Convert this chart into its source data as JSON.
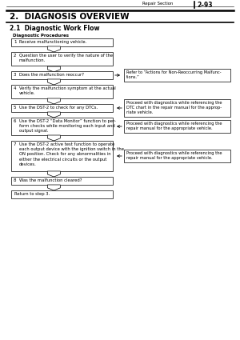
{
  "page_header_left": "Repair Section",
  "page_header_right": "2–93",
  "section_title": "2.  DIAGNOSIS OVERVIEW",
  "subsection_title": "2.1  Diagnostic Work Flow",
  "procedures_label": "Diagnostic Procedures",
  "steps": [
    {
      "num": "1",
      "text": "Receive malfunctioning vehicle."
    },
    {
      "num": "2",
      "text": "Question the user to verify the nature of the\nmalfunction."
    },
    {
      "num": "3",
      "text": "Does the malfunction reoccur?"
    },
    {
      "num": "4",
      "text": "Verify the malfunction symptom at the actual\nvehicle."
    },
    {
      "num": "5",
      "text": "Use the DST-2 to check for any DTCs."
    },
    {
      "num": "6",
      "text": "Use the DST-2 “Data Monitor” function to per-\nform checks while monitoring each input and\noutput signal."
    },
    {
      "num": "7",
      "text": "Use the DST-2 active test function to operate\neach output device with the ignition switch in the\nON position. Check for any abnormalities in\neither the electrical circuits or the output\ndevices."
    },
    {
      "num": "8",
      "text": "Was the malfunction cleared?"
    }
  ],
  "side_notes": {
    "3": "Refer to “Actions for Non-Reoccurring Malfunc-\ntions.”",
    "5": "Proceed with diagnostics while referencing the\nDTC chart in the repair manual for the approp-\nriate vehicle.",
    "6": "Proceed with diagnostics while referencing the\nrepair manual for the appropriate vehicle.",
    "7": "Proceed with diagnostics while referencing the\nrepair manual for the appropriate vehicle."
  },
  "return_text": "Return to step 3.",
  "bg_color": "#ffffff"
}
